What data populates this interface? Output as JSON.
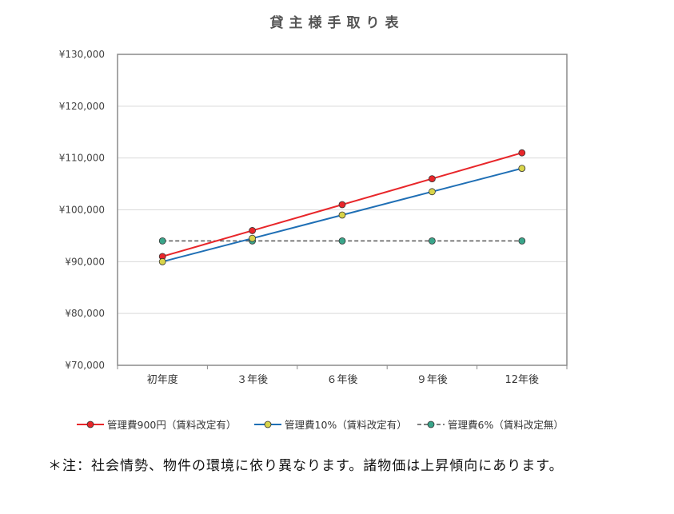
{
  "chart_data": {
    "type": "line",
    "title": "貸主様手取り表",
    "categories": [
      "初年度",
      "３年後",
      "６年後",
      "９年後",
      "12年後"
    ],
    "ylim": [
      70000,
      130000
    ],
    "yticks": [
      70000,
      80000,
      90000,
      100000,
      110000,
      120000,
      130000
    ],
    "ytick_labels": [
      "¥70,000",
      "¥80,000",
      "¥90,000",
      "¥100,000",
      "¥110,000",
      "¥120,000",
      "¥130,000"
    ],
    "grid": true,
    "legend_position": "bottom",
    "series": [
      {
        "name": "管理費900円（賃料改定有）",
        "values": [
          91000,
          96000,
          101000,
          106000,
          111000
        ],
        "color": "#e8262a",
        "marker_color": "#e8262a",
        "dashed": false
      },
      {
        "name": "管理費10%（賃料改定有）",
        "values": [
          90000,
          94500,
          99000,
          103500,
          108000
        ],
        "color": "#1f6fb5",
        "marker_color": "#d8d44a",
        "dashed": false
      },
      {
        "name": "管理費6%（賃料改定無）",
        "values": [
          94000,
          94000,
          94000,
          94000,
          94000
        ],
        "color": "#555555",
        "marker_color": "#3aa58a",
        "dashed": true
      }
    ]
  },
  "note": "＊注：社会情勢、物件の環境に依り異なります。諸物価は上昇傾向にあります。"
}
